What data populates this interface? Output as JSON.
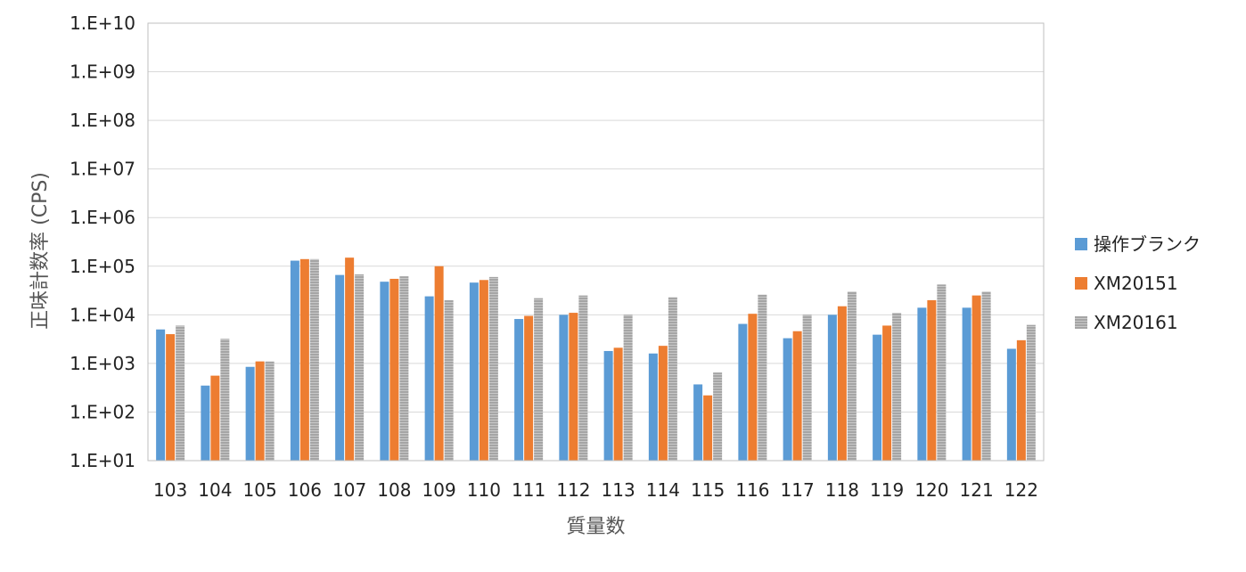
{
  "chart_data": {
    "type": "bar",
    "title": "",
    "xlabel": "質量数",
    "ylabel": "正味計数率 (CPS)",
    "yscale": "log",
    "ylim": [
      10,
      10000000000
    ],
    "yticks": [
      "1.E+01",
      "1.E+02",
      "1.E+03",
      "1.E+04",
      "1.E+05",
      "1.E+06",
      "1.E+07",
      "1.E+08",
      "1.E+09",
      "1.E+10"
    ],
    "grid": true,
    "legend_position": "right",
    "categories": [
      "103",
      "104",
      "105",
      "106",
      "107",
      "108",
      "109",
      "110",
      "111",
      "112",
      "113",
      "114",
      "115",
      "116",
      "117",
      "118",
      "119",
      "120",
      "121",
      "122"
    ],
    "series": [
      {
        "name": "操作ブランク",
        "color": "#5b9bd5",
        "values": [
          5000,
          350,
          850,
          130000,
          66000,
          48000,
          24000,
          46000,
          8200,
          10000,
          1800,
          1600,
          370,
          6500,
          3300,
          10000,
          3900,
          14000,
          14000,
          2000
        ]
      },
      {
        "name": "XM20151",
        "color": "#ed7d31",
        "values": [
          4000,
          560,
          1100,
          140000,
          150000,
          55000,
          100000,
          52000,
          9500,
          11000,
          2100,
          2300,
          220,
          10500,
          4600,
          15000,
          6000,
          20000,
          25000,
          3000
        ]
      },
      {
        "name": "XM20161",
        "color": "#a5a5a5",
        "pattern": "hatched",
        "values": [
          6000,
          3200,
          1100,
          140000,
          68000,
          62000,
          20000,
          60000,
          22000,
          25000,
          10000,
          23000,
          650,
          26000,
          10000,
          30000,
          11000,
          42000,
          30000,
          6200
        ]
      }
    ]
  }
}
